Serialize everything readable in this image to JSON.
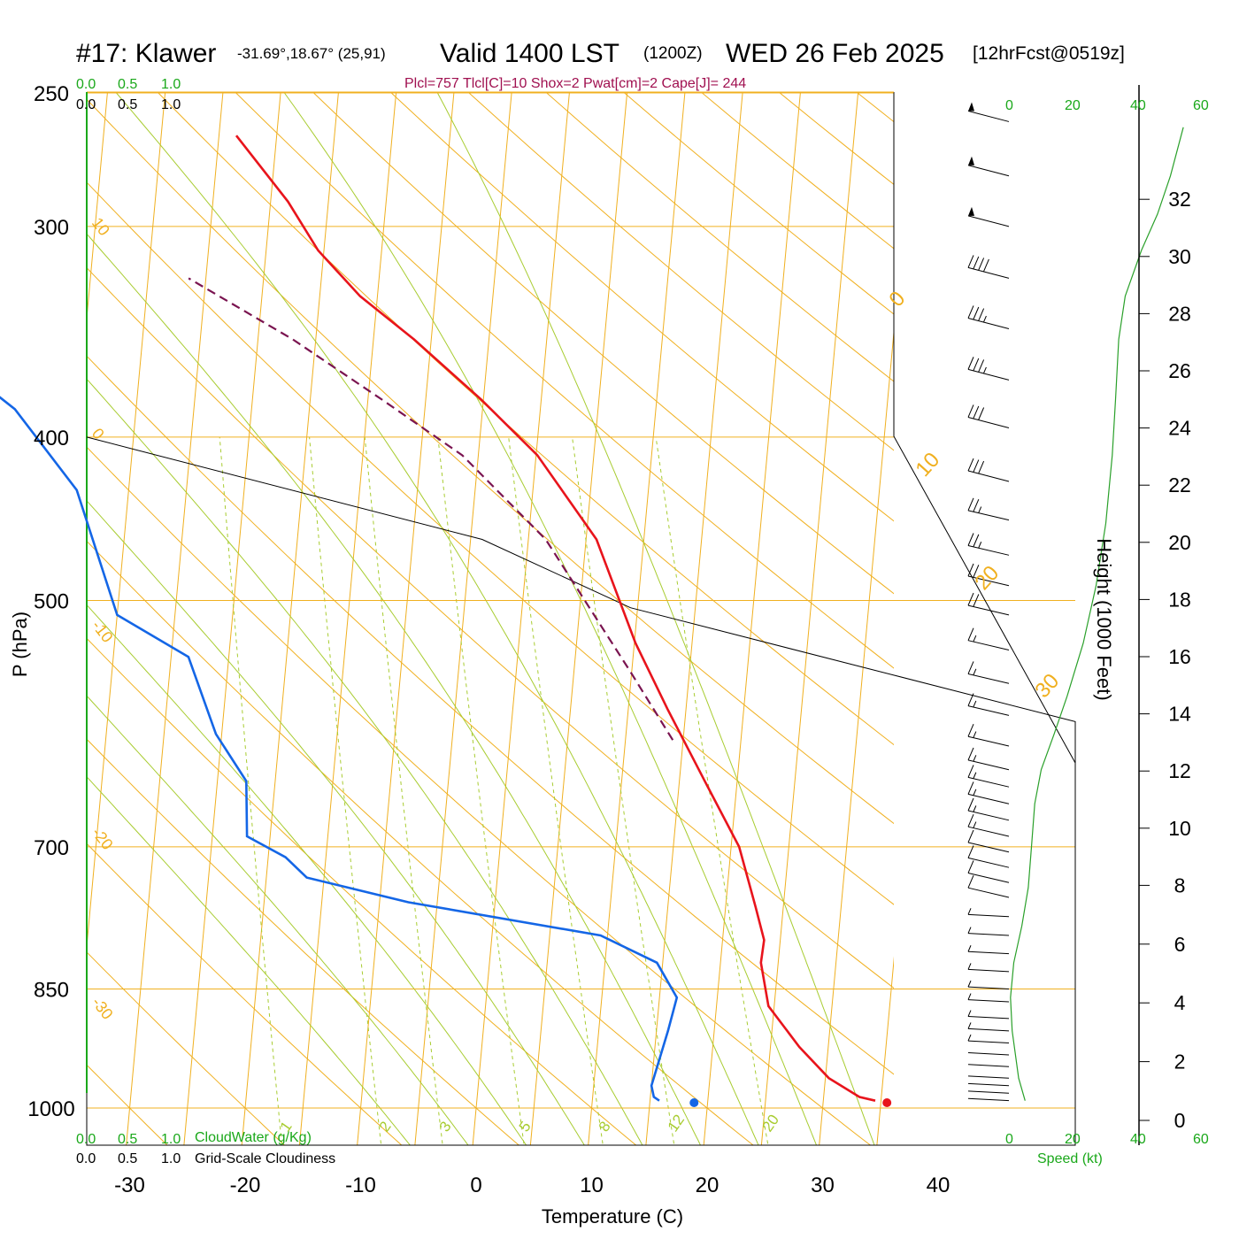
{
  "header": {
    "station": "#17: Klawer",
    "coords": "-31.69°,18.67° (25,91)",
    "valid": "Valid 1400 LST",
    "utc": "(1200Z)",
    "date": "WED 26 Feb 2025",
    "forecast": "[12hrFcst@0519z]",
    "indices": "Plcl=757 Tlcl[C]=10 Shox=2 Pwat[cm]=2 Cape[J]= 244"
  },
  "scale_labels": {
    "cloudwater_ticks": [
      "0.0",
      "0.5",
      "1.0"
    ],
    "cloudiness_ticks": [
      "0.0",
      "0.5",
      "1.0"
    ],
    "cloudwater_label": "CloudWater (g/Kg)",
    "cloudiness_label": "Grid-Scale Cloudiness",
    "speed_label": "Speed (kt)",
    "speed_ticks": [
      "0",
      "20",
      "40",
      "60"
    ]
  },
  "colors": {
    "temperature": "#e8141c",
    "dewpoint": "#1466e6",
    "parcel": "#7a1450",
    "isotherm": "#f0b020",
    "dry_adiabat": "#a8cc30",
    "mixing_ratio": "#a8cc30",
    "green_text": "#1aa81a",
    "speed_profile": "#2aa02a",
    "indices_text": "#a01050"
  },
  "chart_data": {
    "type": "skew-t",
    "xlabel": "Temperature (C)",
    "ylabel": "P (hPa)",
    "y2label": "Height (1000 Feet)",
    "x_ticks": [
      -30,
      -20,
      -10,
      0,
      10,
      20,
      30,
      40
    ],
    "p_ticks": [
      250,
      300,
      400,
      500,
      700,
      850,
      1000
    ],
    "height_ticks": [
      0,
      2,
      4,
      6,
      8,
      10,
      12,
      14,
      16,
      18,
      20,
      22,
      24,
      26,
      28,
      30,
      32
    ],
    "xlim": [
      -33,
      36
    ],
    "plim": [
      1020,
      250
    ],
    "isotherm_labels": [
      {
        "value": "10",
        "p": 300
      },
      {
        "value": "0",
        "p": 400
      },
      {
        "value": "-10",
        "p": 520
      },
      {
        "value": "-20",
        "p": 690
      },
      {
        "value": "-30",
        "p": 870
      }
    ],
    "dry_adiabat_labels": [
      {
        "value": "0",
        "p": 330,
        "t": -27.5
      },
      {
        "value": "10",
        "p": 418,
        "t": -26
      },
      {
        "value": "20",
        "p": 503,
        "t": -25
      },
      {
        "value": "30",
        "p": 590,
        "t": -23
      }
    ],
    "mixing_ratio_labels": [
      "1",
      "2",
      "3",
      "5",
      "8",
      "12",
      "20"
    ],
    "temperature": [
      {
        "p": 990,
        "t": 34.5
      },
      {
        "p": 985,
        "t": 33.1
      },
      {
        "p": 960,
        "t": 30.3
      },
      {
        "p": 920,
        "t": 27.5
      },
      {
        "p": 870,
        "t": 24.5
      },
      {
        "p": 820,
        "t": 23.5
      },
      {
        "p": 795,
        "t": 23.6
      },
      {
        "p": 760,
        "t": 22.6
      },
      {
        "p": 700,
        "t": 20.7
      },
      {
        "p": 640,
        "t": 17.2
      },
      {
        "p": 580,
        "t": 13.4
      },
      {
        "p": 530,
        "t": 10.1
      },
      {
        "p": 460,
        "t": 5.9
      },
      {
        "p": 410,
        "t": 0.1
      },
      {
        "p": 380,
        "t": -5.2
      },
      {
        "p": 350,
        "t": -11.5
      },
      {
        "p": 330,
        "t": -16.5
      },
      {
        "p": 310,
        "t": -20.5
      },
      {
        "p": 290,
        "t": -23.5
      },
      {
        "p": 265,
        "t": -28.5
      }
    ],
    "dewpoint": [
      {
        "p": 990,
        "t": 15.8
      },
      {
        "p": 985,
        "t": 15.3
      },
      {
        "p": 970,
        "t": 15.0
      },
      {
        "p": 900,
        "t": 16.0
      },
      {
        "p": 860,
        "t": 16.5
      },
      {
        "p": 820,
        "t": 14.5
      },
      {
        "p": 790,
        "t": 9.4
      },
      {
        "p": 755,
        "t": -7.5
      },
      {
        "p": 730,
        "t": -16.5
      },
      {
        "p": 710,
        "t": -18.5
      },
      {
        "p": 690,
        "t": -22.0
      },
      {
        "p": 640,
        "t": -22.5
      },
      {
        "p": 600,
        "t": -25.5
      },
      {
        "p": 540,
        "t": -28.5
      },
      {
        "p": 510,
        "t": -35.0
      },
      {
        "p": 430,
        "t": -39.5
      },
      {
        "p": 385,
        "t": -45.5
      },
      {
        "p": 355,
        "t": -52.5
      },
      {
        "p": 325,
        "t": -63.5
      },
      {
        "p": 302,
        "t": -73.5
      },
      {
        "p": 270,
        "t": -80.0
      },
      {
        "p": 260,
        "t": -81.0
      }
    ],
    "parcel": [
      {
        "p": 605,
        "t": 14.1
      },
      {
        "p": 550,
        "t": 9.8
      },
      {
        "p": 460,
        "t": 1.5
      },
      {
        "p": 410,
        "t": -6.4
      },
      {
        "p": 380,
        "t": -13.8
      },
      {
        "p": 350,
        "t": -22.0
      },
      {
        "p": 322,
        "t": -31.5
      }
    ],
    "surface_temperature": 35.5,
    "surface_dewpoint": 18.8,
    "surface_pressure": 988,
    "wind_barbs": [
      {
        "p": 990,
        "spd": 0
      },
      {
        "p": 980,
        "spd": 0
      },
      {
        "p": 970,
        "spd": 0
      },
      {
        "p": 960,
        "spd": 0
      },
      {
        "p": 945,
        "spd": 0
      },
      {
        "p": 930,
        "spd": 0
      },
      {
        "p": 915,
        "spd": 5
      },
      {
        "p": 900,
        "spd": 5
      },
      {
        "p": 885,
        "spd": 5
      },
      {
        "p": 865,
        "spd": 5
      },
      {
        "p": 850,
        "spd": 5
      },
      {
        "p": 830,
        "spd": 5
      },
      {
        "p": 810,
        "spd": 5
      },
      {
        "p": 790,
        "spd": 5
      },
      {
        "p": 770,
        "spd": 5
      },
      {
        "p": 750,
        "spd": 10
      },
      {
        "p": 735,
        "spd": 10
      },
      {
        "p": 720,
        "spd": 10
      },
      {
        "p": 705,
        "spd": 10
      },
      {
        "p": 690,
        "spd": 15
      },
      {
        "p": 675,
        "spd": 15
      },
      {
        "p": 660,
        "spd": 15
      },
      {
        "p": 645,
        "spd": 15
      },
      {
        "p": 630,
        "spd": 15
      },
      {
        "p": 610,
        "spd": 15
      },
      {
        "p": 585,
        "spd": 15
      },
      {
        "p": 560,
        "spd": 15
      },
      {
        "p": 535,
        "spd": 15
      },
      {
        "p": 510,
        "spd": 20
      },
      {
        "p": 490,
        "spd": 20
      },
      {
        "p": 470,
        "spd": 25
      },
      {
        "p": 448,
        "spd": 25
      },
      {
        "p": 425,
        "spd": 30
      },
      {
        "p": 395,
        "spd": 30
      },
      {
        "p": 370,
        "spd": 35
      },
      {
        "p": 345,
        "spd": 35
      },
      {
        "p": 322,
        "spd": 40
      },
      {
        "p": 300,
        "spd": 50
      },
      {
        "p": 280,
        "spd": 50
      },
      {
        "p": 260,
        "spd": 50
      }
    ],
    "wind_speed_profile": [
      {
        "p": 990,
        "spd": 5
      },
      {
        "p": 960,
        "spd": 3
      },
      {
        "p": 900,
        "spd": 1
      },
      {
        "p": 860,
        "spd": 0.5
      },
      {
        "p": 820,
        "spd": 1.5
      },
      {
        "p": 780,
        "spd": 4
      },
      {
        "p": 740,
        "spd": 6
      },
      {
        "p": 700,
        "spd": 7
      },
      {
        "p": 660,
        "spd": 8
      },
      {
        "p": 630,
        "spd": 10
      },
      {
        "p": 600,
        "spd": 14
      },
      {
        "p": 570,
        "spd": 18
      },
      {
        "p": 530,
        "spd": 23
      },
      {
        "p": 490,
        "spd": 27
      },
      {
        "p": 450,
        "spd": 30
      },
      {
        "p": 410,
        "spd": 32
      },
      {
        "p": 380,
        "spd": 33
      },
      {
        "p": 350,
        "spd": 34
      },
      {
        "p": 330,
        "spd": 36
      },
      {
        "p": 310,
        "spd": 41
      },
      {
        "p": 295,
        "spd": 46
      },
      {
        "p": 280,
        "spd": 50
      },
      {
        "p": 262,
        "spd": 54
      }
    ],
    "cloud_outline": [
      {
        "p": 400,
        "f": 0.0
      },
      {
        "p": 460,
        "f": 0.4
      },
      {
        "p": 505,
        "f": 0.55
      },
      {
        "p": 590,
        "f": 1.0
      },
      {
        "p": 640,
        "f": 1.0
      },
      {
        "p": 1000,
        "f": 1.0
      }
    ]
  }
}
